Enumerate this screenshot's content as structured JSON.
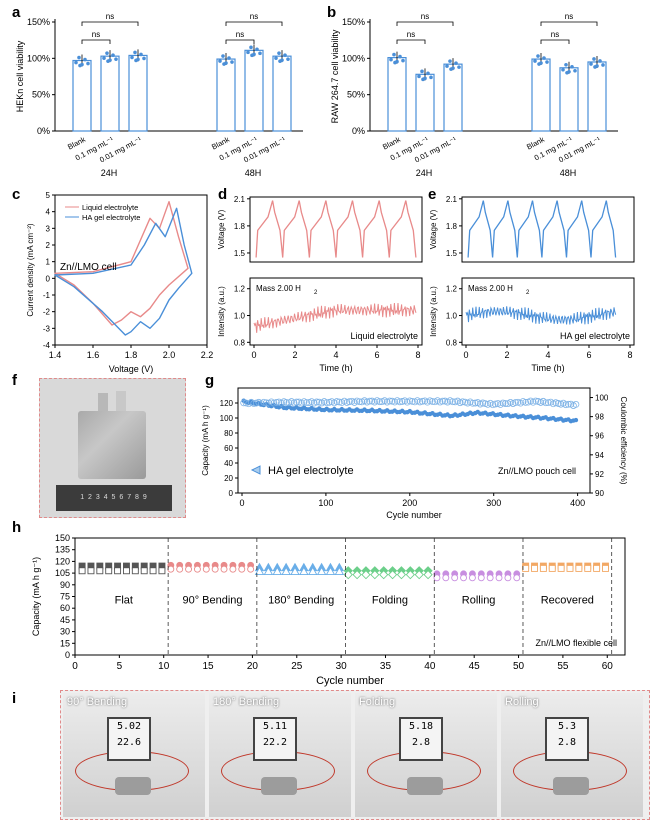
{
  "panel_labels": {
    "a": "a",
    "b": "b",
    "c": "c",
    "d": "d",
    "e": "e",
    "f": "f",
    "g": "g",
    "h": "h",
    "i": "i"
  },
  "chart_data": [
    {
      "id": "a",
      "type": "bar",
      "ylabel": "HEKn cell viability",
      "yticks": [
        "0%",
        "50%",
        "100%",
        "150%"
      ],
      "ylim": [
        0,
        150
      ],
      "groups": [
        {
          "label": "24H",
          "categories": [
            "Blank",
            "0.1 mg mL⁻¹",
            "0.01 mg mL⁻¹"
          ],
          "values": [
            97,
            103,
            104
          ]
        },
        {
          "label": "48H",
          "categories": [
            "Blank",
            "0.1 mg mL⁻¹",
            "0.01 mg mL⁻¹"
          ],
          "values": [
            99,
            111,
            103
          ]
        }
      ],
      "annotations": [
        "ns",
        "ns",
        "ns",
        "ns"
      ]
    },
    {
      "id": "b",
      "type": "bar",
      "ylabel": "RAW 264.7 cell viability",
      "yticks": [
        "0%",
        "50%",
        "100%",
        "150%"
      ],
      "ylim": [
        0,
        150
      ],
      "groups": [
        {
          "label": "24H",
          "categories": [
            "Blank",
            "0.1 mg mL⁻¹",
            "0.01 mg mL⁻¹"
          ],
          "values": [
            101,
            78,
            92
          ]
        },
        {
          "label": "48H",
          "categories": [
            "Blank",
            "0.1 mg mL⁻¹",
            "0.01 mg mL⁻¹"
          ],
          "values": [
            99,
            87,
            95
          ]
        }
      ],
      "annotations": [
        "ns",
        "ns",
        "ns",
        "ns"
      ]
    },
    {
      "id": "c",
      "type": "line",
      "xlabel": "Voltage (V)",
      "ylabel": "Current density (mA cm⁻²)",
      "xticks": [
        "1.4",
        "1.6",
        "1.8",
        "2.0",
        "2.2"
      ],
      "xlim": [
        1.4,
        2.2
      ],
      "yticks": [
        "-4",
        "-3",
        "-2",
        "-1",
        "0",
        "1",
        "2",
        "3",
        "4",
        "5"
      ],
      "ylim": [
        -4,
        5
      ],
      "annotation": "Zn//LMO cell",
      "series": [
        {
          "name": "Liquid electrolyte",
          "color": "#e88a8a",
          "x": [
            1.4,
            1.6,
            1.8,
            1.85,
            1.9,
            1.95,
            2.0,
            2.05,
            2.1,
            2.0,
            1.95,
            1.9,
            1.85,
            1.8,
            1.75,
            1.7,
            1.6,
            1.5,
            1.4
          ],
          "y": [
            0.3,
            0.4,
            1.0,
            2.3,
            3.6,
            3.0,
            4.6,
            2.5,
            0.6,
            -0.4,
            -1.0,
            -1.8,
            -2.3,
            -2.0,
            -2.5,
            -2.8,
            -1.5,
            -0.4,
            0.3
          ]
        },
        {
          "name": "HA gel electrolyte",
          "color": "#4a8fd8",
          "x": [
            1.4,
            1.6,
            1.8,
            1.87,
            1.93,
            1.98,
            2.04,
            2.08,
            2.12,
            2.05,
            2.0,
            1.95,
            1.9,
            1.85,
            1.8,
            1.77,
            1.65,
            1.5,
            1.4
          ],
          "y": [
            0.2,
            0.3,
            0.8,
            2.0,
            3.3,
            2.5,
            4.2,
            2.0,
            0.3,
            -0.6,
            -1.3,
            -2.4,
            -3.0,
            -2.6,
            -3.2,
            -3.4,
            -2.0,
            -0.5,
            0.2
          ]
        }
      ]
    },
    {
      "id": "d",
      "type": "line",
      "top": {
        "ylabel": "Voltage (V)",
        "yticks": [
          "1.5",
          "1.8",
          "2.1"
        ],
        "ylim": [
          1.4,
          2.12
        ]
      },
      "bottom": {
        "ylabel": "Intensity (a.u.)",
        "yticks": [
          "0.8",
          "1.0",
          "1.2"
        ],
        "ylim": [
          0.78,
          1.28
        ],
        "annotation_mass": "Mass 2.00  H",
        "annotation_sub": "2",
        "annotation_label": "Liquid electrolyte"
      },
      "xlabel": "Time (h)",
      "xticks": [
        "0",
        "2",
        "4",
        "6",
        "8"
      ],
      "xlim": [
        0,
        8
      ],
      "color": "#e88a8a",
      "cycles": 6,
      "period_h": 1.3
    },
    {
      "id": "e",
      "type": "line",
      "top": {
        "ylabel": "Voltage (V)",
        "yticks": [
          "1.5",
          "1.8",
          "2.1"
        ],
        "ylim": [
          1.4,
          2.12
        ]
      },
      "bottom": {
        "ylabel": "Intensity (a.u.)",
        "yticks": [
          "0.8",
          "1.0",
          "1.2"
        ],
        "ylim": [
          0.78,
          1.28
        ],
        "annotation_mass": "Mass 2.00  H",
        "annotation_sub": "2",
        "annotation_label": "HA gel electrolyte"
      },
      "xlabel": "Time (h)",
      "xticks": [
        "0",
        "2",
        "4",
        "6",
        "8"
      ],
      "xlim": [
        0,
        8
      ],
      "color": "#4a8fd8",
      "cycles": 6,
      "period_h": 1.2
    },
    {
      "id": "g",
      "type": "scatter",
      "xlabel": "Cycle number",
      "xticks": [
        "0",
        "100",
        "200",
        "300",
        "400"
      ],
      "xlim": [
        0,
        410
      ],
      "ylabel": "Capacity (mA h g⁻¹)",
      "yticks": [
        "0",
        "20",
        "40",
        "60",
        "80",
        "100",
        "120"
      ],
      "ylim": [
        0,
        140
      ],
      "y2label": "Coulombic efficiency (%)",
      "y2ticks": [
        "90",
        "92",
        "94",
        "96",
        "98",
        "100"
      ],
      "y2lim": [
        90,
        101
      ],
      "legend": "HA gel electrolyte",
      "annotation": "Zn//LMO pouch cell",
      "capacity_x": [
        1,
        50,
        100,
        150,
        200,
        250,
        280,
        320,
        360,
        400
      ],
      "capacity_y": [
        122,
        114,
        111,
        110,
        108,
        103,
        107,
        103,
        100,
        96
      ],
      "ce_x": [
        1,
        50,
        100,
        150,
        200,
        250,
        300,
        350,
        400
      ],
      "ce_y": [
        99.4,
        99.5,
        99.5,
        99.6,
        99.6,
        99.6,
        99.3,
        99.6,
        99.2
      ]
    },
    {
      "id": "h",
      "type": "scatter",
      "xlabel": "Cycle number",
      "xticks": [
        "0",
        "5",
        "10",
        "15",
        "20",
        "25",
        "30",
        "35",
        "40",
        "45",
        "50",
        "55",
        "60"
      ],
      "xlim": [
        0,
        62
      ],
      "ylabel": "Capacity (mA h g⁻¹)",
      "yticks": [
        "0",
        "15",
        "30",
        "45",
        "60",
        "75",
        "90",
        "105",
        "120",
        "135",
        "150"
      ],
      "ylim": [
        0,
        150
      ],
      "annotation": "Zn//LMO flexible cell",
      "segments": [
        {
          "label": "Flat",
          "start": 1,
          "end": 10,
          "charge": 114,
          "discharge": 108,
          "color": "#555555",
          "marker": "square"
        },
        {
          "label": "90° Bending",
          "start": 11,
          "end": 20,
          "charge": 115,
          "discharge": 110,
          "color": "#e88a8a",
          "marker": "circle"
        },
        {
          "label": "180° Bending",
          "start": 21,
          "end": 30,
          "charge": 112,
          "discharge": 107,
          "color": "#6aaee8",
          "marker": "triangle"
        },
        {
          "label": "Folding",
          "start": 31,
          "end": 40,
          "charge": 108,
          "discharge": 103,
          "color": "#6ccf8a",
          "marker": "diamond"
        },
        {
          "label": "Rolling",
          "start": 41,
          "end": 50,
          "charge": 104,
          "discharge": 99,
          "color": "#c88fe0",
          "marker": "circle"
        },
        {
          "label": "Recovered",
          "start": 51,
          "end": 60,
          "charge": 114,
          "discharge": 111,
          "color": "#f2a865",
          "marker": "square"
        }
      ]
    }
  ],
  "photos": {
    "pouch": {
      "ruler_numbers": "1  2  3  4  5  6  7  8  9"
    },
    "setups": [
      "90° Bending",
      "180° Bending",
      "Folding",
      "Rolling"
    ],
    "readouts": [
      {
        "top": "5.02",
        "bottom": "22.6"
      },
      {
        "top": "5.11",
        "bottom": "22.2"
      },
      {
        "top": "5.18",
        "bottom": "2.8"
      },
      {
        "top": "5.3",
        "bottom": "2.8"
      }
    ]
  }
}
